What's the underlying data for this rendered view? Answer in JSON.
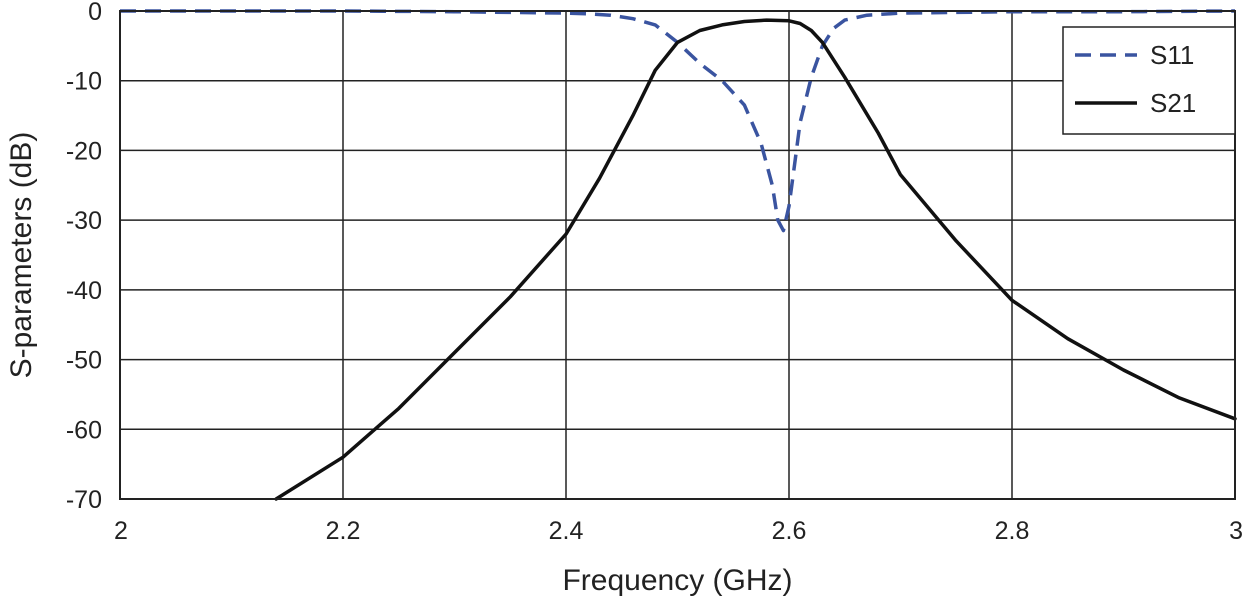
{
  "chart_data": {
    "type": "line",
    "xlabel": "Frequency (GHz)",
    "ylabel": "S-parameters (dB)",
    "xlim": [
      2,
      3
    ],
    "ylim": [
      -70,
      0
    ],
    "xticks": [
      2,
      2.2,
      2.4,
      2.6,
      2.8,
      3
    ],
    "xtick_labels": [
      "2",
      "2.2",
      "2.4",
      "2.6",
      "2.8",
      "3"
    ],
    "yticks": [
      0,
      -10,
      -20,
      -30,
      -40,
      -50,
      -60,
      -70
    ],
    "ytick_labels": [
      "0",
      "-10",
      "-20",
      "-30",
      "-40",
      "-50",
      "-60",
      "-70"
    ],
    "grid": true,
    "legend_position": "top-right",
    "series": [
      {
        "name": "S11",
        "color": "#3a54a0",
        "style": "dashed",
        "x": [
          2.0,
          2.1,
          2.2,
          2.3,
          2.35,
          2.4,
          2.42,
          2.44,
          2.46,
          2.48,
          2.5,
          2.52,
          2.54,
          2.56,
          2.575,
          2.585,
          2.59,
          2.595,
          2.6,
          2.605,
          2.61,
          2.62,
          2.63,
          2.64,
          2.65,
          2.67,
          2.7,
          2.8,
          2.9,
          3.0
        ],
        "y": [
          0,
          0,
          0,
          -0.1,
          -0.2,
          -0.3,
          -0.4,
          -0.6,
          -1.1,
          -2.0,
          -4.5,
          -7.5,
          -10.0,
          -13.5,
          -19.0,
          -25.0,
          -30.0,
          -31.5,
          -28.0,
          -22.0,
          -16.0,
          -9.5,
          -5.0,
          -2.5,
          -1.3,
          -0.6,
          -0.3,
          -0.1,
          -0.1,
          0
        ]
      },
      {
        "name": "S21",
        "color": "#111111",
        "style": "solid",
        "x": [
          2.14,
          2.2,
          2.25,
          2.3,
          2.35,
          2.4,
          2.43,
          2.46,
          2.48,
          2.5,
          2.52,
          2.54,
          2.56,
          2.58,
          2.6,
          2.61,
          2.62,
          2.63,
          2.65,
          2.68,
          2.7,
          2.75,
          2.8,
          2.85,
          2.9,
          2.95,
          3.0
        ],
        "y": [
          -70,
          -64,
          -57,
          -49,
          -41,
          -32,
          -24,
          -15,
          -8.5,
          -4.5,
          -2.8,
          -2.0,
          -1.5,
          -1.3,
          -1.4,
          -1.8,
          -2.8,
          -4.5,
          -9.5,
          -17.5,
          -23.5,
          -33.0,
          -41.5,
          -47.0,
          -51.5,
          -55.5,
          -58.5
        ]
      }
    ]
  }
}
